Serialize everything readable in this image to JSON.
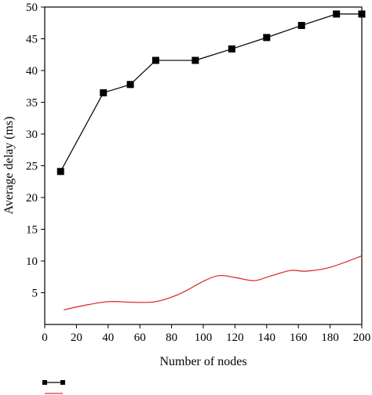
{
  "chart_data": {
    "type": "line",
    "title": "",
    "xlabel": "Number of nodes",
    "ylabel": "Average delay (ms)",
    "xlim": [
      0,
      200
    ],
    "ylim": [
      0,
      50
    ],
    "xticks": [
      0,
      20,
      40,
      60,
      80,
      100,
      120,
      140,
      160,
      180,
      200
    ],
    "yticks": [
      5,
      10,
      15,
      20,
      25,
      30,
      35,
      40,
      45,
      50
    ],
    "grid": false,
    "legend": "bottom-left",
    "series": [
      {
        "marker": "square",
        "color": "#000000",
        "x": [
          10,
          37,
          54,
          70,
          95,
          118,
          140,
          162,
          184,
          200
        ],
        "y": [
          24.1,
          36.5,
          37.8,
          41.6,
          41.6,
          43.4,
          45.2,
          47.1,
          48.9,
          48.9
        ]
      },
      {
        "marker": "none",
        "smooth": true,
        "color": "#e03030",
        "x": [
          12,
          25,
          40,
          55,
          70,
          85,
          100,
          110,
          120,
          132,
          142,
          155,
          165,
          180,
          200
        ],
        "y": [
          2.3,
          3.0,
          3.6,
          3.5,
          3.6,
          4.8,
          6.8,
          7.7,
          7.4,
          6.9,
          7.6,
          8.5,
          8.4,
          9.0,
          10.8
        ]
      }
    ]
  }
}
